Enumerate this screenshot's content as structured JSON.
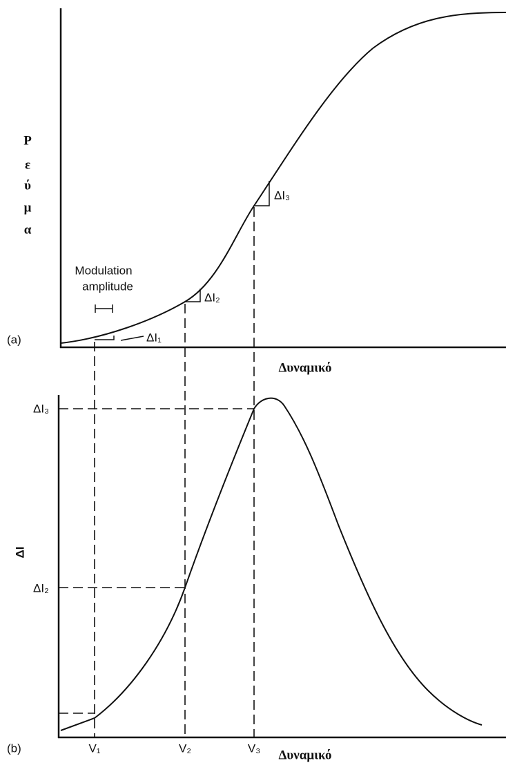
{
  "panel_a": {
    "tag": "(a)",
    "y_label_letters": [
      "Ρ",
      "ε",
      "ύ",
      "μ",
      "α"
    ],
    "x_label": "Δυναμικό",
    "modulation_label": [
      "Modulation",
      "amplitude"
    ],
    "step_labels": [
      "ΔI₁",
      "ΔI₂",
      "ΔI₃"
    ]
  },
  "panel_b": {
    "tag": "(b)",
    "y_label": "ΔI",
    "x_label": "Δυναμικό",
    "y_marks": [
      "ΔI₃",
      "ΔI₂"
    ],
    "x_marks": [
      "V₁",
      "V₂",
      "V₃"
    ]
  }
}
